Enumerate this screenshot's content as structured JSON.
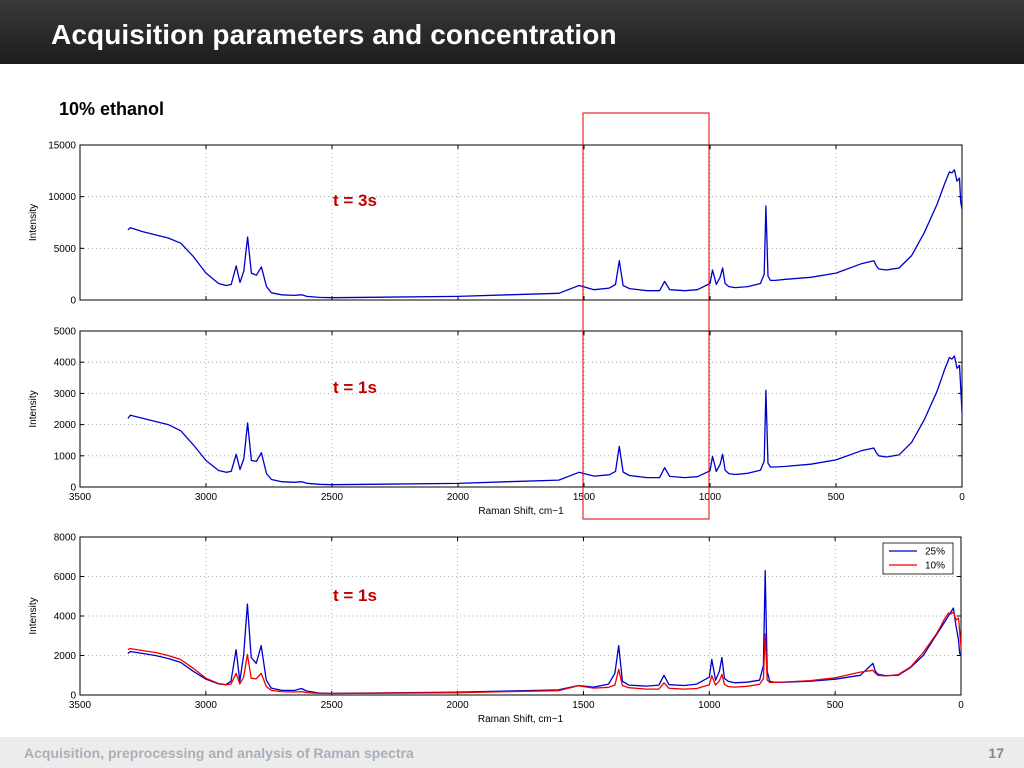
{
  "header": {
    "title": "Acquisition parameters and concentration"
  },
  "subtitle": "10% ethanol",
  "footer": {
    "text": "Acquisition, preprocessing and analysis of Raman spectra",
    "page_number": "17"
  },
  "colors": {
    "series_25": "#0000cc",
    "series_10": "#ee0000",
    "annotation": "#c00000",
    "highlight_box": "#dd0000",
    "header_bg": "#2a2a2a"
  },
  "chart_data": [
    {
      "type": "line",
      "annotation": "t = 3s",
      "xlabel": "",
      "ylabel": "Intensity",
      "xlim": [
        3500,
        0
      ],
      "xaxis_reversed": true,
      "ylim": [
        0,
        15000
      ],
      "xticks": [
        3500,
        3000,
        2500,
        2000,
        1500,
        1000,
        500,
        0
      ],
      "xtick_labels_shown": false,
      "yticks": [
        0,
        5000,
        10000,
        15000
      ],
      "grid": true,
      "series": [
        {
          "color": "#0000cc",
          "x": [
            3310,
            3300,
            3250,
            3200,
            3150,
            3100,
            3050,
            3000,
            2950,
            2920,
            2900,
            2880,
            2865,
            2850,
            2835,
            2820,
            2800,
            2780,
            2760,
            2740,
            2700,
            2650,
            2620,
            2600,
            2550,
            2500,
            2000,
            1800,
            1600,
            1520,
            1460,
            1400,
            1375,
            1360,
            1345,
            1320,
            1250,
            1200,
            1180,
            1160,
            1100,
            1050,
            1000,
            990,
            975,
            960,
            950,
            940,
            925,
            900,
            850,
            800,
            785,
            778,
            770,
            760,
            740,
            700,
            600,
            500,
            400,
            350,
            340,
            330,
            300,
            250,
            200,
            150,
            100,
            80,
            70,
            60,
            50,
            40,
            30,
            20,
            10,
            5,
            0
          ],
          "y": [
            6800,
            7000,
            6600,
            6300,
            6000,
            5500,
            4200,
            2600,
            1600,
            1400,
            1500,
            3300,
            1700,
            2800,
            6100,
            2600,
            2400,
            3200,
            1300,
            700,
            500,
            450,
            500,
            350,
            250,
            220,
            350,
            500,
            650,
            1400,
            1000,
            1150,
            1500,
            3800,
            1400,
            1100,
            900,
            900,
            1800,
            1000,
            900,
            1000,
            1600,
            2900,
            1500,
            2200,
            3100,
            1600,
            1300,
            1200,
            1300,
            1600,
            2500,
            9100,
            2300,
            1900,
            1900,
            2000,
            2200,
            2600,
            3500,
            3800,
            3300,
            3000,
            2900,
            3100,
            4300,
            6500,
            9200,
            10500,
            11200,
            11800,
            12400,
            12300,
            12600,
            11500,
            11800,
            9500,
            8800
          ]
        }
      ]
    },
    {
      "type": "line",
      "annotation": "t = 1s",
      "xlabel": "Raman Shift, cm−1",
      "ylabel": "Intensity",
      "xlim": [
        3500,
        0
      ],
      "xaxis_reversed": true,
      "ylim": [
        0,
        5000
      ],
      "xticks": [
        3500,
        3000,
        2500,
        2000,
        1500,
        1000,
        500,
        0
      ],
      "xtick_labels": [
        "3500",
        "3000",
        "2500",
        "2000",
        "1500",
        "1000",
        "500",
        "0"
      ],
      "yticks": [
        0,
        1000,
        2000,
        3000,
        4000,
        5000
      ],
      "grid": true,
      "series": [
        {
          "color": "#0000cc",
          "x": [
            3310,
            3300,
            3250,
            3200,
            3150,
            3100,
            3050,
            3000,
            2950,
            2920,
            2900,
            2880,
            2865,
            2850,
            2835,
            2820,
            2800,
            2780,
            2760,
            2740,
            2700,
            2650,
            2620,
            2600,
            2550,
            2500,
            2000,
            1800,
            1600,
            1520,
            1460,
            1400,
            1375,
            1360,
            1345,
            1320,
            1250,
            1200,
            1180,
            1160,
            1100,
            1050,
            1000,
            990,
            975,
            960,
            950,
            940,
            925,
            900,
            850,
            800,
            785,
            778,
            770,
            760,
            740,
            700,
            600,
            500,
            400,
            350,
            340,
            330,
            300,
            250,
            200,
            150,
            100,
            80,
            70,
            60,
            50,
            40,
            30,
            20,
            10,
            5,
            0
          ],
          "y": [
            2200,
            2300,
            2200,
            2100,
            2000,
            1800,
            1350,
            850,
            530,
            470,
            500,
            1050,
            560,
            900,
            2050,
            850,
            820,
            1100,
            430,
            240,
            170,
            150,
            170,
            120,
            85,
            75,
            115,
            170,
            220,
            470,
            350,
            390,
            500,
            1300,
            480,
            370,
            300,
            300,
            620,
            340,
            300,
            330,
            520,
            980,
            500,
            720,
            1050,
            540,
            430,
            400,
            440,
            540,
            830,
            3100,
            760,
            640,
            640,
            660,
            730,
            870,
            1160,
            1250,
            1100,
            1000,
            960,
            1030,
            1430,
            2150,
            3050,
            3500,
            3750,
            3950,
            4150,
            4100,
            4200,
            3800,
            3900,
            3200,
            2400
          ]
        }
      ]
    },
    {
      "type": "line",
      "annotation": "t = 1s",
      "xlabel": "Raman Shift, cm−1",
      "ylabel": "Intensity",
      "xlim": [
        3500,
        0
      ],
      "xaxis_reversed": true,
      "ylim": [
        0,
        8000
      ],
      "xticks": [
        3500,
        3000,
        2500,
        2000,
        1500,
        1000,
        500,
        0
      ],
      "xtick_labels": [
        "3500",
        "3000",
        "2500",
        "2000",
        "1500",
        "1000",
        "500",
        "0"
      ],
      "yticks": [
        0,
        2000,
        4000,
        6000,
        8000
      ],
      "grid": true,
      "legend_position": "top-right",
      "series": [
        {
          "name": "25%",
          "color": "#0000cc",
          "x": [
            3310,
            3300,
            3250,
            3200,
            3150,
            3100,
            3050,
            3000,
            2950,
            2920,
            2900,
            2880,
            2865,
            2850,
            2835,
            2820,
            2800,
            2780,
            2760,
            2740,
            2700,
            2650,
            2620,
            2600,
            2550,
            2500,
            2000,
            1800,
            1600,
            1520,
            1460,
            1400,
            1375,
            1360,
            1345,
            1320,
            1250,
            1200,
            1180,
            1160,
            1100,
            1050,
            1000,
            990,
            975,
            960,
            950,
            940,
            925,
            900,
            850,
            800,
            785,
            778,
            770,
            760,
            740,
            700,
            600,
            500,
            400,
            350,
            340,
            330,
            300,
            250,
            200,
            150,
            100,
            80,
            70,
            60,
            50,
            40,
            30,
            20,
            10,
            5,
            0
          ],
          "y": [
            2100,
            2200,
            2100,
            2000,
            1850,
            1650,
            1200,
            800,
            560,
            520,
            700,
            2300,
            700,
            2000,
            4600,
            1900,
            1600,
            2500,
            750,
            350,
            240,
            230,
            330,
            200,
            100,
            80,
            140,
            200,
            260,
            480,
            400,
            550,
            1100,
            2500,
            700,
            500,
            450,
            500,
            1000,
            520,
            480,
            550,
            900,
            1800,
            750,
            1200,
            1900,
            850,
            700,
            620,
            650,
            750,
            1500,
            6300,
            1200,
            700,
            650,
            650,
            700,
            800,
            1000,
            1600,
            1200,
            1050,
            980,
            1000,
            1400,
            2000,
            3000,
            3400,
            3600,
            3800,
            4000,
            4200,
            4400,
            3500,
            2800,
            2100,
            2000
          ]
        },
        {
          "name": "10%",
          "color": "#ee0000",
          "x": [
            3310,
            3300,
            3250,
            3200,
            3150,
            3100,
            3050,
            3000,
            2950,
            2920,
            2900,
            2880,
            2865,
            2850,
            2835,
            2820,
            2800,
            2780,
            2760,
            2740,
            2700,
            2650,
            2620,
            2600,
            2550,
            2500,
            2000,
            1800,
            1600,
            1520,
            1460,
            1400,
            1375,
            1360,
            1345,
            1320,
            1250,
            1200,
            1180,
            1160,
            1100,
            1050,
            1000,
            990,
            975,
            960,
            950,
            940,
            925,
            900,
            850,
            800,
            785,
            778,
            770,
            760,
            740,
            700,
            600,
            500,
            400,
            350,
            340,
            330,
            300,
            250,
            200,
            150,
            100,
            80,
            70,
            60,
            50,
            40,
            30,
            20,
            10,
            5,
            0
          ],
          "y": [
            2300,
            2350,
            2250,
            2150,
            2000,
            1800,
            1350,
            850,
            580,
            520,
            550,
            1100,
            560,
            900,
            2050,
            850,
            820,
            1100,
            430,
            240,
            170,
            150,
            170,
            120,
            85,
            75,
            115,
            170,
            220,
            470,
            350,
            390,
            500,
            1300,
            480,
            370,
            300,
            300,
            620,
            340,
            300,
            330,
            520,
            980,
            500,
            720,
            1050,
            540,
            430,
            400,
            440,
            540,
            830,
            3100,
            760,
            640,
            640,
            660,
            730,
            870,
            1160,
            1250,
            1100,
            1000,
            960,
            1030,
            1430,
            2150,
            3050,
            3500,
            3750,
            3950,
            4150,
            4100,
            4200,
            3800,
            3900,
            3200,
            2400
          ]
        }
      ]
    }
  ],
  "highlight_region": {
    "x_from": 1500,
    "x_to": 1000,
    "spans": "top two panels"
  }
}
